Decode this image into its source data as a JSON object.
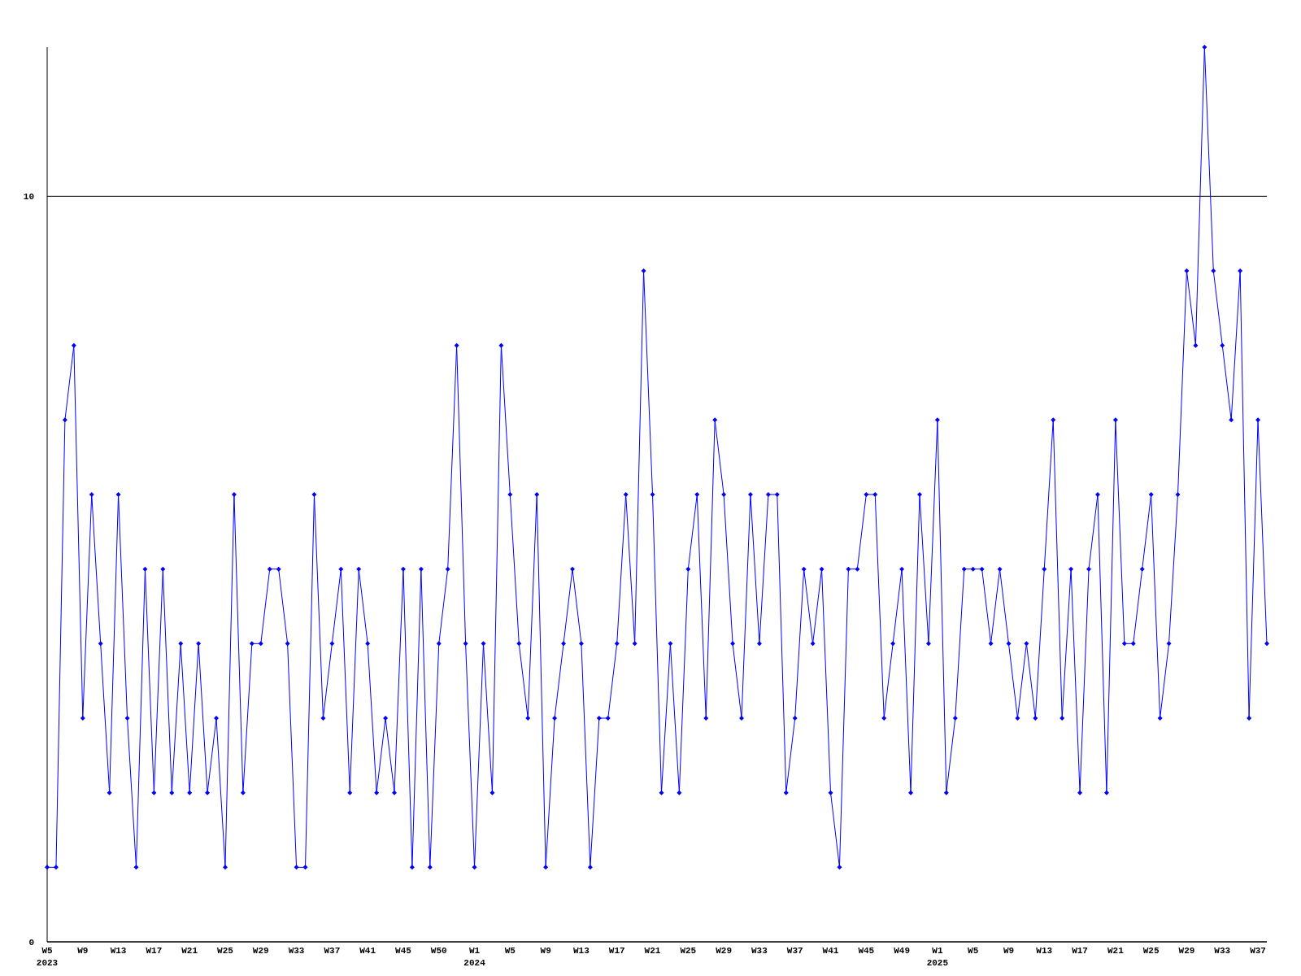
{
  "chart_data": {
    "type": "line",
    "categories": [
      "W5\n2023",
      null,
      null,
      null,
      "W9",
      null,
      null,
      null,
      "W13",
      null,
      null,
      null,
      "W17",
      null,
      null,
      null,
      "W21",
      null,
      null,
      null,
      "W25",
      null,
      null,
      null,
      "W29",
      null,
      null,
      null,
      "W33",
      null,
      null,
      null,
      "W37",
      null,
      null,
      null,
      "W41",
      null,
      null,
      null,
      "W45",
      null,
      null,
      null,
      "W50",
      null,
      null,
      null,
      "W1\n2024",
      null,
      null,
      null,
      "W5",
      null,
      null,
      null,
      "W9",
      null,
      null,
      null,
      "W13",
      null,
      null,
      null,
      "W17",
      null,
      null,
      null,
      "W21",
      null,
      null,
      null,
      "W25",
      null,
      null,
      null,
      "W29",
      null,
      null,
      null,
      "W33",
      null,
      null,
      null,
      "W37",
      null,
      null,
      null,
      "W41",
      null,
      null,
      null,
      "W45",
      null,
      null,
      null,
      "W49",
      null,
      null,
      null,
      "W1\n2025",
      null,
      null,
      null,
      "W5",
      null,
      null,
      null,
      "W9",
      null,
      null,
      null,
      "W13",
      null,
      null,
      null,
      "W17",
      null,
      null,
      null,
      "W21",
      null,
      null,
      null,
      "W25",
      null,
      null,
      null,
      "W29",
      null,
      null,
      null,
      "W33",
      null,
      null,
      null,
      "W37",
      null
    ],
    "series": [
      {
        "color": "#0000ff",
        "values": [
          1,
          1,
          7,
          8,
          3,
          6,
          4,
          2,
          6,
          3,
          1,
          5,
          2,
          5,
          2,
          4,
          2,
          4,
          2,
          3,
          1,
          6,
          2,
          4,
          4,
          5,
          5,
          4,
          1,
          1,
          6,
          3,
          4,
          5,
          2,
          5,
          4,
          2,
          3,
          2,
          5,
          1,
          5,
          1,
          4,
          5,
          8,
          4,
          1,
          4,
          2,
          8,
          6,
          4,
          3,
          6,
          1,
          3,
          4,
          5,
          4,
          1,
          3,
          3,
          4,
          6,
          4,
          9,
          6,
          2,
          4,
          2,
          5,
          6,
          3,
          7,
          6,
          4,
          3,
          6,
          4,
          6,
          6,
          2,
          3,
          5,
          4,
          5,
          2,
          1,
          5,
          5,
          6,
          6,
          3,
          4,
          5,
          2,
          6,
          4,
          7,
          2,
          3,
          5,
          5,
          5,
          4,
          5,
          4,
          3,
          4,
          3,
          5,
          7,
          3,
          5,
          2,
          5,
          6,
          2,
          7,
          4,
          4,
          5,
          6,
          3,
          4,
          6,
          9,
          8,
          12,
          9,
          8,
          7,
          9,
          3,
          7,
          4
        ]
      }
    ],
    "ylim": [
      0,
      12
    ],
    "yticks": [
      0,
      10
    ],
    "grid": "y",
    "marker": "diamond",
    "line_style": "solid"
  }
}
